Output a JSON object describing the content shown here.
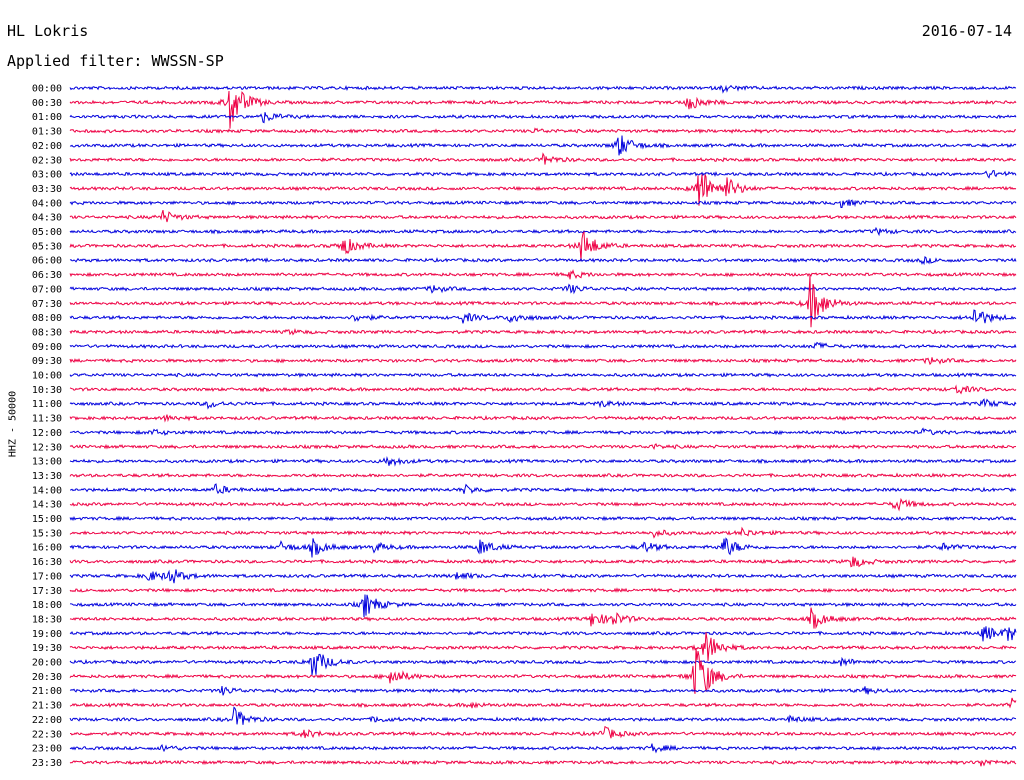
{
  "header": {
    "station": "HL Lokris",
    "date": "2016-07-14",
    "filter": "Applied filter: WWSSN-SP"
  },
  "chart_data": {
    "type": "line",
    "title": "HL Lokris",
    "ylabel": "HHZ - 50000",
    "series_colors": [
      "#0000dd",
      "#ee0044"
    ],
    "rows": [
      {
        "label": "00:00",
        "color": "#0000dd",
        "events": [
          {
            "t": 0.69,
            "a": 3
          }
        ]
      },
      {
        "label": "00:30",
        "color": "#ee0044",
        "events": [
          {
            "t": 0.168,
            "a": 30
          },
          {
            "t": 0.653,
            "a": 9
          }
        ]
      },
      {
        "label": "01:00",
        "color": "#0000dd",
        "events": [
          {
            "t": 0.203,
            "a": 6
          }
        ]
      },
      {
        "label": "01:30",
        "color": "#ee0044",
        "events": [
          {
            "t": 0.49,
            "a": 2
          }
        ]
      },
      {
        "label": "02:00",
        "color": "#0000dd",
        "events": [
          {
            "t": 0.578,
            "a": 14
          }
        ]
      },
      {
        "label": "02:30",
        "color": "#ee0044",
        "events": [
          {
            "t": 0.5,
            "a": 5
          }
        ]
      },
      {
        "label": "03:00",
        "color": "#0000dd",
        "events": [
          {
            "t": 0.97,
            "a": 4
          }
        ]
      },
      {
        "label": "03:30",
        "color": "#ee0044",
        "events": [
          {
            "t": 0.663,
            "a": 28
          },
          {
            "t": 0.693,
            "a": 10
          }
        ]
      },
      {
        "label": "04:00",
        "color": "#0000dd",
        "events": [
          {
            "t": 0.815,
            "a": 4
          }
        ]
      },
      {
        "label": "04:30",
        "color": "#ee0044",
        "events": [
          {
            "t": 0.097,
            "a": 7
          }
        ]
      },
      {
        "label": "05:00",
        "color": "#0000dd",
        "events": [
          {
            "t": 0.85,
            "a": 3
          }
        ]
      },
      {
        "label": "05:30",
        "color": "#ee0044",
        "events": [
          {
            "t": 0.286,
            "a": 12
          },
          {
            "t": 0.54,
            "a": 18
          }
        ]
      },
      {
        "label": "06:00",
        "color": "#0000dd",
        "events": [
          {
            "t": 0.9,
            "a": 3
          }
        ]
      },
      {
        "label": "06:30",
        "color": "#ee0044",
        "events": [
          {
            "t": 0.525,
            "a": 5
          }
        ]
      },
      {
        "label": "07:00",
        "color": "#0000dd",
        "events": [
          {
            "t": 0.38,
            "a": 4
          },
          {
            "t": 0.525,
            "a": 5
          }
        ]
      },
      {
        "label": "07:30",
        "color": "#ee0044",
        "events": [
          {
            "t": 0.782,
            "a": 28
          }
        ]
      },
      {
        "label": "08:00",
        "color": "#0000dd",
        "events": [
          {
            "t": 0.3,
            "a": 4
          },
          {
            "t": 0.415,
            "a": 5
          },
          {
            "t": 0.465,
            "a": 6
          },
          {
            "t": 0.955,
            "a": 12
          }
        ]
      },
      {
        "label": "08:30",
        "color": "#ee0044",
        "events": [
          {
            "t": 0.23,
            "a": 2
          }
        ]
      },
      {
        "label": "09:00",
        "color": "#0000dd",
        "events": [
          {
            "t": 0.785,
            "a": 4
          }
        ]
      },
      {
        "label": "09:30",
        "color": "#ee0044",
        "events": [
          {
            "t": 0.905,
            "a": 4
          }
        ]
      },
      {
        "label": "10:00",
        "color": "#0000dd",
        "events": []
      },
      {
        "label": "10:30",
        "color": "#ee0044",
        "events": [
          {
            "t": 0.935,
            "a": 5
          }
        ]
      },
      {
        "label": "11:00",
        "color": "#0000dd",
        "events": [
          {
            "t": 0.145,
            "a": 4
          },
          {
            "t": 0.56,
            "a": 3
          },
          {
            "t": 0.965,
            "a": 4
          }
        ]
      },
      {
        "label": "11:30",
        "color": "#ee0044",
        "events": [
          {
            "t": 0.1,
            "a": 3
          }
        ]
      },
      {
        "label": "12:00",
        "color": "#0000dd",
        "events": [
          {
            "t": 0.085,
            "a": 3
          },
          {
            "t": 0.9,
            "a": 3
          }
        ]
      },
      {
        "label": "12:30",
        "color": "#ee0044",
        "events": [
          {
            "t": 0.615,
            "a": 2
          }
        ]
      },
      {
        "label": "13:00",
        "color": "#0000dd",
        "events": [
          {
            "t": 0.333,
            "a": 6
          }
        ]
      },
      {
        "label": "13:30",
        "color": "#ee0044",
        "events": []
      },
      {
        "label": "14:00",
        "color": "#0000dd",
        "events": [
          {
            "t": 0.153,
            "a": 5
          },
          {
            "t": 0.415,
            "a": 5
          }
        ]
      },
      {
        "label": "14:30",
        "color": "#ee0044",
        "events": [
          {
            "t": 0.87,
            "a": 8
          }
        ]
      },
      {
        "label": "15:00",
        "color": "#0000dd",
        "events": []
      },
      {
        "label": "15:30",
        "color": "#ee0044",
        "events": [
          {
            "t": 0.615,
            "a": 4
          },
          {
            "t": 0.71,
            "a": 4
          }
        ]
      },
      {
        "label": "16:00",
        "color": "#0000dd",
        "events": [
          {
            "t": 0.222,
            "a": 5
          },
          {
            "t": 0.255,
            "a": 9
          },
          {
            "t": 0.32,
            "a": 5
          },
          {
            "t": 0.432,
            "a": 9
          },
          {
            "t": 0.605,
            "a": 6
          },
          {
            "t": 0.69,
            "a": 12
          },
          {
            "t": 0.92,
            "a": 4
          }
        ]
      },
      {
        "label": "16:30",
        "color": "#ee0044",
        "events": [
          {
            "t": 0.825,
            "a": 7
          }
        ]
      },
      {
        "label": "17:00",
        "color": "#0000dd",
        "events": [
          {
            "t": 0.08,
            "a": 6
          },
          {
            "t": 0.103,
            "a": 10
          },
          {
            "t": 0.408,
            "a": 4
          }
        ]
      },
      {
        "label": "17:30",
        "color": "#ee0044",
        "events": []
      },
      {
        "label": "18:00",
        "color": "#0000dd",
        "events": [
          {
            "t": 0.31,
            "a": 14
          }
        ]
      },
      {
        "label": "18:30",
        "color": "#ee0044",
        "events": [
          {
            "t": 0.55,
            "a": 8
          },
          {
            "t": 0.57,
            "a": 8
          },
          {
            "t": 0.783,
            "a": 11
          }
        ]
      },
      {
        "label": "19:00",
        "color": "#0000dd",
        "events": [
          {
            "t": 0.965,
            "a": 9
          },
          {
            "t": 0.99,
            "a": 8
          }
        ]
      },
      {
        "label": "19:30",
        "color": "#ee0044",
        "events": [
          {
            "t": 0.67,
            "a": 20
          }
        ]
      },
      {
        "label": "20:00",
        "color": "#0000dd",
        "events": [
          {
            "t": 0.255,
            "a": 18
          },
          {
            "t": 0.815,
            "a": 4
          }
        ]
      },
      {
        "label": "20:30",
        "color": "#ee0044",
        "events": [
          {
            "t": 0.66,
            "a": 40
          },
          {
            "t": 0.338,
            "a": 10
          }
        ]
      },
      {
        "label": "21:00",
        "color": "#0000dd",
        "events": [
          {
            "t": 0.16,
            "a": 4
          },
          {
            "t": 0.84,
            "a": 3
          }
        ]
      },
      {
        "label": "21:30",
        "color": "#ee0044",
        "events": [
          {
            "t": 0.995,
            "a": 6
          },
          {
            "t": 0.42,
            "a": 3
          }
        ]
      },
      {
        "label": "22:00",
        "color": "#0000dd",
        "events": [
          {
            "t": 0.173,
            "a": 11
          },
          {
            "t": 0.32,
            "a": 3
          },
          {
            "t": 0.76,
            "a": 3
          }
        ]
      },
      {
        "label": "22:30",
        "color": "#ee0044",
        "events": [
          {
            "t": 0.245,
            "a": 5
          },
          {
            "t": 0.562,
            "a": 8
          }
        ]
      },
      {
        "label": "23:00",
        "color": "#0000dd",
        "events": [
          {
            "t": 0.097,
            "a": 3
          },
          {
            "t": 0.615,
            "a": 4
          }
        ]
      },
      {
        "label": "23:30",
        "color": "#ee0044",
        "events": [
          {
            "t": 0.96,
            "a": 4
          }
        ]
      }
    ]
  }
}
